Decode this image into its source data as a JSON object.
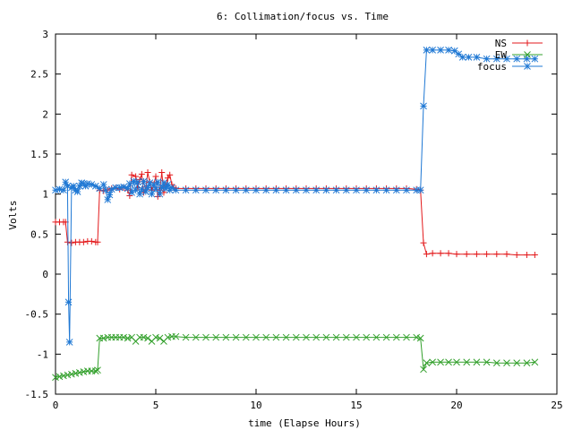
{
  "chart_data": {
    "type": "line",
    "title": "6: Collimation/focus vs. Time",
    "xlabel": "time (Elapse Hours)",
    "ylabel": "Volts",
    "xlim": [
      0,
      25
    ],
    "ylim": [
      -1.5,
      3
    ],
    "xticks": [
      0,
      5,
      10,
      15,
      20,
      25
    ],
    "xtick_labels": [
      "0",
      "5",
      "10",
      "15",
      "20",
      "25"
    ],
    "yticks": [
      -1.5,
      -1,
      -0.5,
      0,
      0.5,
      1,
      1.5,
      2,
      2.5,
      3
    ],
    "ytick_labels": [
      "-1.5",
      "-1",
      "-0.5",
      "0",
      "0.5",
      "1",
      "1.5",
      "2",
      "2.5",
      "3"
    ],
    "grid": false,
    "legend_position": "top-right",
    "series": [
      {
        "name": "NS",
        "color": "#e31a1c",
        "marker": "plus",
        "points": [
          [
            0.0,
            0.65
          ],
          [
            0.2,
            0.65
          ],
          [
            0.4,
            0.65
          ],
          [
            0.5,
            0.65
          ],
          [
            0.6,
            0.4
          ],
          [
            0.8,
            0.39
          ],
          [
            1.0,
            0.4
          ],
          [
            1.2,
            0.4
          ],
          [
            1.4,
            0.4
          ],
          [
            1.6,
            0.41
          ],
          [
            1.8,
            0.41
          ],
          [
            2.0,
            0.4
          ],
          [
            2.1,
            0.4
          ],
          [
            2.2,
            1.05
          ],
          [
            2.4,
            1.04
          ],
          [
            2.6,
            1.05
          ],
          [
            2.8,
            1.07
          ],
          [
            3.0,
            1.08
          ],
          [
            3.2,
            1.06
          ],
          [
            3.4,
            1.08
          ],
          [
            3.6,
            1.05
          ],
          [
            3.7,
            0.98
          ],
          [
            3.8,
            1.24
          ],
          [
            4.0,
            1.22
          ],
          [
            4.1,
            1.08
          ],
          [
            4.2,
            1.18
          ],
          [
            4.3,
            1.25
          ],
          [
            4.4,
            1.02
          ],
          [
            4.5,
            1.06
          ],
          [
            4.6,
            1.27
          ],
          [
            4.7,
            1.15
          ],
          [
            4.8,
            1.05
          ],
          [
            4.9,
            1.12
          ],
          [
            5.0,
            1.22
          ],
          [
            5.1,
            0.97
          ],
          [
            5.2,
            1.05
          ],
          [
            5.3,
            1.27
          ],
          [
            5.4,
            1.02
          ],
          [
            5.5,
            1.1
          ],
          [
            5.6,
            1.2
          ],
          [
            5.7,
            1.24
          ],
          [
            5.8,
            1.12
          ],
          [
            5.9,
            1.08
          ],
          [
            6.0,
            1.07
          ],
          [
            6.5,
            1.07
          ],
          [
            7.0,
            1.07
          ],
          [
            7.5,
            1.07
          ],
          [
            8.0,
            1.07
          ],
          [
            8.5,
            1.07
          ],
          [
            9.0,
            1.07
          ],
          [
            9.5,
            1.07
          ],
          [
            10.0,
            1.07
          ],
          [
            10.5,
            1.07
          ],
          [
            11.0,
            1.07
          ],
          [
            11.5,
            1.07
          ],
          [
            12.0,
            1.07
          ],
          [
            12.5,
            1.07
          ],
          [
            13.0,
            1.07
          ],
          [
            13.5,
            1.07
          ],
          [
            14.0,
            1.07
          ],
          [
            14.5,
            1.07
          ],
          [
            15.0,
            1.07
          ],
          [
            15.5,
            1.07
          ],
          [
            16.0,
            1.07
          ],
          [
            16.5,
            1.07
          ],
          [
            17.0,
            1.07
          ],
          [
            17.5,
            1.07
          ],
          [
            18.0,
            1.06
          ],
          [
            18.2,
            1.05
          ],
          [
            18.35,
            0.39
          ],
          [
            18.5,
            0.25
          ],
          [
            18.8,
            0.26
          ],
          [
            19.2,
            0.26
          ],
          [
            19.6,
            0.26
          ],
          [
            20.0,
            0.25
          ],
          [
            20.5,
            0.25
          ],
          [
            21.0,
            0.25
          ],
          [
            21.5,
            0.25
          ],
          [
            22.0,
            0.25
          ],
          [
            22.5,
            0.25
          ],
          [
            23.0,
            0.24
          ],
          [
            23.5,
            0.24
          ],
          [
            23.9,
            0.24
          ]
        ]
      },
      {
        "name": "EW",
        "color": "#33a02c",
        "marker": "cross",
        "points": [
          [
            0.0,
            -1.29
          ],
          [
            0.2,
            -1.28
          ],
          [
            0.4,
            -1.27
          ],
          [
            0.6,
            -1.26
          ],
          [
            0.8,
            -1.25
          ],
          [
            1.0,
            -1.24
          ],
          [
            1.2,
            -1.23
          ],
          [
            1.4,
            -1.22
          ],
          [
            1.6,
            -1.21
          ],
          [
            1.8,
            -1.21
          ],
          [
            2.0,
            -1.21
          ],
          [
            2.1,
            -1.2
          ],
          [
            2.2,
            -0.8
          ],
          [
            2.4,
            -0.8
          ],
          [
            2.6,
            -0.79
          ],
          [
            2.8,
            -0.79
          ],
          [
            3.0,
            -0.79
          ],
          [
            3.2,
            -0.79
          ],
          [
            3.4,
            -0.79
          ],
          [
            3.6,
            -0.8
          ],
          [
            3.8,
            -0.79
          ],
          [
            4.0,
            -0.84
          ],
          [
            4.2,
            -0.79
          ],
          [
            4.4,
            -0.79
          ],
          [
            4.6,
            -0.8
          ],
          [
            4.8,
            -0.84
          ],
          [
            5.0,
            -0.79
          ],
          [
            5.2,
            -0.8
          ],
          [
            5.4,
            -0.84
          ],
          [
            5.6,
            -0.79
          ],
          [
            5.8,
            -0.78
          ],
          [
            6.0,
            -0.78
          ],
          [
            6.5,
            -0.79
          ],
          [
            7.0,
            -0.79
          ],
          [
            7.5,
            -0.79
          ],
          [
            8.0,
            -0.79
          ],
          [
            8.5,
            -0.79
          ],
          [
            9.0,
            -0.79
          ],
          [
            9.5,
            -0.79
          ],
          [
            10.0,
            -0.79
          ],
          [
            10.5,
            -0.79
          ],
          [
            11.0,
            -0.79
          ],
          [
            11.5,
            -0.79
          ],
          [
            12.0,
            -0.79
          ],
          [
            12.5,
            -0.79
          ],
          [
            13.0,
            -0.79
          ],
          [
            13.5,
            -0.79
          ],
          [
            14.0,
            -0.79
          ],
          [
            14.5,
            -0.79
          ],
          [
            15.0,
            -0.79
          ],
          [
            15.5,
            -0.79
          ],
          [
            16.0,
            -0.79
          ],
          [
            16.5,
            -0.79
          ],
          [
            17.0,
            -0.79
          ],
          [
            17.5,
            -0.79
          ],
          [
            18.0,
            -0.79
          ],
          [
            18.2,
            -0.8
          ],
          [
            18.35,
            -1.19
          ],
          [
            18.5,
            -1.11
          ],
          [
            18.8,
            -1.1
          ],
          [
            19.2,
            -1.1
          ],
          [
            19.6,
            -1.1
          ],
          [
            20.0,
            -1.1
          ],
          [
            20.5,
            -1.1
          ],
          [
            21.0,
            -1.1
          ],
          [
            21.5,
            -1.1
          ],
          [
            22.0,
            -1.11
          ],
          [
            22.5,
            -1.11
          ],
          [
            23.0,
            -1.11
          ],
          [
            23.5,
            -1.11
          ],
          [
            23.9,
            -1.1
          ]
        ]
      },
      {
        "name": "focus",
        "color": "#1f78d4",
        "marker": "star",
        "points": [
          [
            0.0,
            1.05
          ],
          [
            0.2,
            1.06
          ],
          [
            0.4,
            1.05
          ],
          [
            0.5,
            1.15
          ],
          [
            0.6,
            1.1
          ],
          [
            0.65,
            -0.35
          ],
          [
            0.7,
            -0.85
          ],
          [
            0.8,
            1.08
          ],
          [
            0.9,
            1.1
          ],
          [
            1.0,
            1.05
          ],
          [
            1.1,
            1.03
          ],
          [
            1.2,
            1.1
          ],
          [
            1.3,
            1.14
          ],
          [
            1.4,
            1.13
          ],
          [
            1.5,
            1.1
          ],
          [
            1.6,
            1.13
          ],
          [
            1.8,
            1.12
          ],
          [
            2.0,
            1.1
          ],
          [
            2.2,
            1.07
          ],
          [
            2.4,
            1.12
          ],
          [
            2.5,
            1.05
          ],
          [
            2.6,
            0.93
          ],
          [
            2.7,
            0.99
          ],
          [
            2.8,
            1.06
          ],
          [
            3.0,
            1.08
          ],
          [
            3.2,
            1.08
          ],
          [
            3.4,
            1.09
          ],
          [
            3.6,
            1.07
          ],
          [
            3.7,
            1.13
          ],
          [
            3.8,
            1.02
          ],
          [
            3.9,
            1.16
          ],
          [
            4.0,
            1.05
          ],
          [
            4.1,
            1.15
          ],
          [
            4.2,
            1.0
          ],
          [
            4.3,
            1.06
          ],
          [
            4.4,
            1.16
          ],
          [
            4.5,
            1.03
          ],
          [
            4.6,
            1.08
          ],
          [
            4.7,
            1.14
          ],
          [
            4.8,
            1.0
          ],
          [
            4.9,
            1.12
          ],
          [
            5.0,
            1.06
          ],
          [
            5.1,
            1.15
          ],
          [
            5.2,
            1.0
          ],
          [
            5.3,
            1.08
          ],
          [
            5.4,
            1.14
          ],
          [
            5.5,
            1.07
          ],
          [
            5.6,
            1.12
          ],
          [
            5.7,
            1.05
          ],
          [
            5.8,
            1.08
          ],
          [
            6.0,
            1.05
          ],
          [
            6.5,
            1.05
          ],
          [
            7.0,
            1.05
          ],
          [
            7.5,
            1.05
          ],
          [
            8.0,
            1.05
          ],
          [
            8.5,
            1.05
          ],
          [
            9.0,
            1.05
          ],
          [
            9.5,
            1.05
          ],
          [
            10.0,
            1.05
          ],
          [
            10.5,
            1.05
          ],
          [
            11.0,
            1.05
          ],
          [
            11.5,
            1.05
          ],
          [
            12.0,
            1.05
          ],
          [
            12.5,
            1.05
          ],
          [
            13.0,
            1.05
          ],
          [
            13.5,
            1.05
          ],
          [
            14.0,
            1.05
          ],
          [
            14.5,
            1.05
          ],
          [
            15.0,
            1.05
          ],
          [
            15.5,
            1.05
          ],
          [
            16.0,
            1.05
          ],
          [
            16.5,
            1.05
          ],
          [
            17.0,
            1.05
          ],
          [
            17.5,
            1.05
          ],
          [
            18.0,
            1.05
          ],
          [
            18.2,
            1.05
          ],
          [
            18.35,
            2.1
          ],
          [
            18.5,
            2.8
          ],
          [
            18.8,
            2.8
          ],
          [
            19.2,
            2.8
          ],
          [
            19.6,
            2.8
          ],
          [
            19.9,
            2.79
          ],
          [
            20.1,
            2.75
          ],
          [
            20.3,
            2.71
          ],
          [
            20.6,
            2.71
          ],
          [
            21.0,
            2.71
          ],
          [
            21.5,
            2.69
          ],
          [
            22.0,
            2.69
          ],
          [
            22.5,
            2.69
          ],
          [
            23.0,
            2.69
          ],
          [
            23.5,
            2.69
          ],
          [
            23.9,
            2.69
          ]
        ]
      }
    ]
  }
}
